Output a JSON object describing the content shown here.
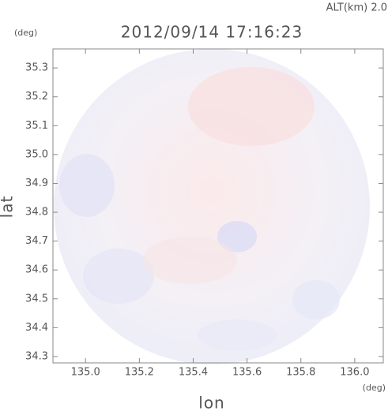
{
  "chart_data": {
    "type": "map",
    "altitude_label": "ALT(km) 2.0",
    "title": "2012/09/14 17:16:23",
    "y_unit": "(deg)",
    "x_unit": "(deg)",
    "ylabel": "lat",
    "xlabel": "lon",
    "xlim": [
      134.879,
      136.106
    ],
    "ylim": [
      34.278,
      35.366
    ],
    "xticks": [
      {
        "value": 135,
        "label": "135.0"
      },
      135.2,
      135.4,
      135.6,
      135.8,
      {
        "value": 136,
        "label": "136.0"
      }
    ],
    "yticks": [
      34.3,
      34.4,
      34.5,
      34.6,
      34.7,
      34.8,
      34.9,
      {
        "value": 35,
        "label": "35.0"
      },
      35.1,
      35.2,
      35.3
    ]
  }
}
